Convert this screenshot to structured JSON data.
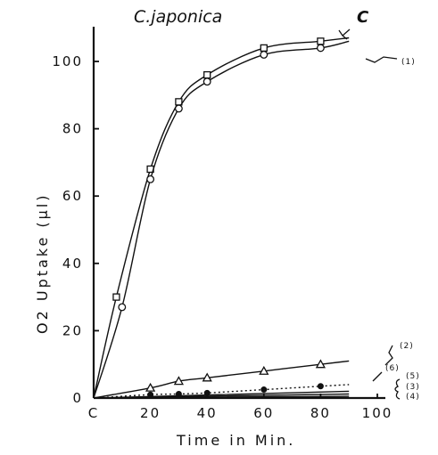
{
  "chart_data": {
    "type": "line",
    "title": "C.japonica",
    "xlabel": "Time in Min.",
    "ylabel": "O2 Uptake (µl)",
    "xlim": [
      0,
      100
    ],
    "ylim": [
      0,
      110
    ],
    "x_ticks": [
      {
        "value": 0,
        "label": "C"
      },
      {
        "value": 20,
        "label": "20"
      },
      {
        "value": 40,
        "label": "40"
      },
      {
        "value": 60,
        "label": "60"
      },
      {
        "value": 80,
        "label": "80"
      },
      {
        "value": 100,
        "label": "100"
      }
    ],
    "y_ticks": [
      {
        "value": 0,
        "label": "0"
      },
      {
        "value": 20,
        "label": "20"
      },
      {
        "value": 40,
        "label": "40"
      },
      {
        "value": 60,
        "label": "60"
      },
      {
        "value": 80,
        "label": "80"
      },
      {
        "value": 100,
        "label": "100"
      }
    ],
    "series": [
      {
        "name": "C",
        "marker": "square",
        "x": [
          0,
          8,
          20,
          30,
          40,
          60,
          80
        ],
        "y": [
          0,
          30,
          68,
          88,
          96,
          104,
          106
        ],
        "curve_to": [
          90,
          107
        ]
      },
      {
        "name": "(1)",
        "marker": "circle",
        "x": [
          0,
          10,
          20,
          30,
          40,
          60,
          80
        ],
        "y": [
          0,
          27,
          65,
          86,
          94,
          102,
          104
        ],
        "curve_to": [
          90,
          106
        ]
      },
      {
        "name": "(2)",
        "marker": "triangle",
        "x": [
          0,
          20,
          30,
          40,
          60,
          80
        ],
        "y": [
          0,
          3,
          5,
          6,
          8,
          10
        ],
        "curve_to": [
          90,
          11
        ]
      },
      {
        "name": "(6)",
        "marker": "filled-circle",
        "dashed": true,
        "x": [
          0,
          20,
          30,
          40,
          60,
          80
        ],
        "y": [
          0,
          1,
          1.2,
          1.5,
          2.5,
          3.5
        ],
        "curve_to": [
          90,
          4
        ]
      },
      {
        "name": "(5)",
        "marker": "none",
        "x": [
          0,
          90
        ],
        "y": [
          0,
          2
        ]
      },
      {
        "name": "(3)",
        "marker": "none",
        "x": [
          0,
          90
        ],
        "y": [
          0,
          1.2
        ]
      },
      {
        "name": "(4)",
        "marker": "none",
        "x": [
          0,
          90
        ],
        "y": [
          0,
          0.5
        ]
      }
    ],
    "grid": false,
    "legend": "none"
  }
}
